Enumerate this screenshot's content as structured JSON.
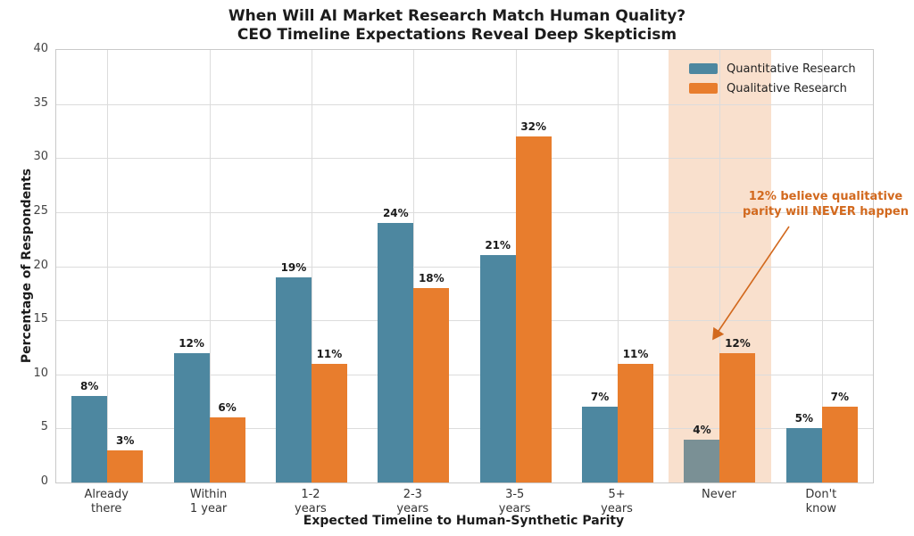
{
  "title": {
    "line1": "When Will AI Market Research Match Human Quality?",
    "line2": "CEO Timeline Expectations Reveal Deep Skepticism"
  },
  "axes": {
    "y_label": "Percentage of Respondents",
    "x_label": "Expected Timeline to Human-Synthetic Parity",
    "y_ticks": [
      0,
      5,
      10,
      15,
      20,
      25,
      30,
      35,
      40
    ]
  },
  "annotation": {
    "line1": "12% believe qualitative",
    "line2": "parity will NEVER happen",
    "color": "#d2691e"
  },
  "chart_data": {
    "type": "bar",
    "categories": [
      "Already\nthere",
      "Within\n1 year",
      "1-2\nyears",
      "2-3\nyears",
      "3-5\nyears",
      "5+\nyears",
      "Never",
      "Don't\nknow"
    ],
    "series": [
      {
        "name": "Quantitative Research",
        "color": "#4d87a0",
        "values": [
          8,
          12,
          19,
          24,
          21,
          7,
          4,
          5
        ]
      },
      {
        "name": "Qualitative Research",
        "color": "#e87d2d",
        "values": [
          3,
          6,
          11,
          18,
          32,
          11,
          12,
          7
        ]
      }
    ],
    "value_suffix": "%",
    "ylim": [
      0,
      40
    ],
    "grid": true,
    "legend_position": "upper right",
    "highlight": {
      "category": "Never",
      "band_color": "#f9e0cd",
      "quantitative_bar_color": "#7a9095"
    }
  }
}
